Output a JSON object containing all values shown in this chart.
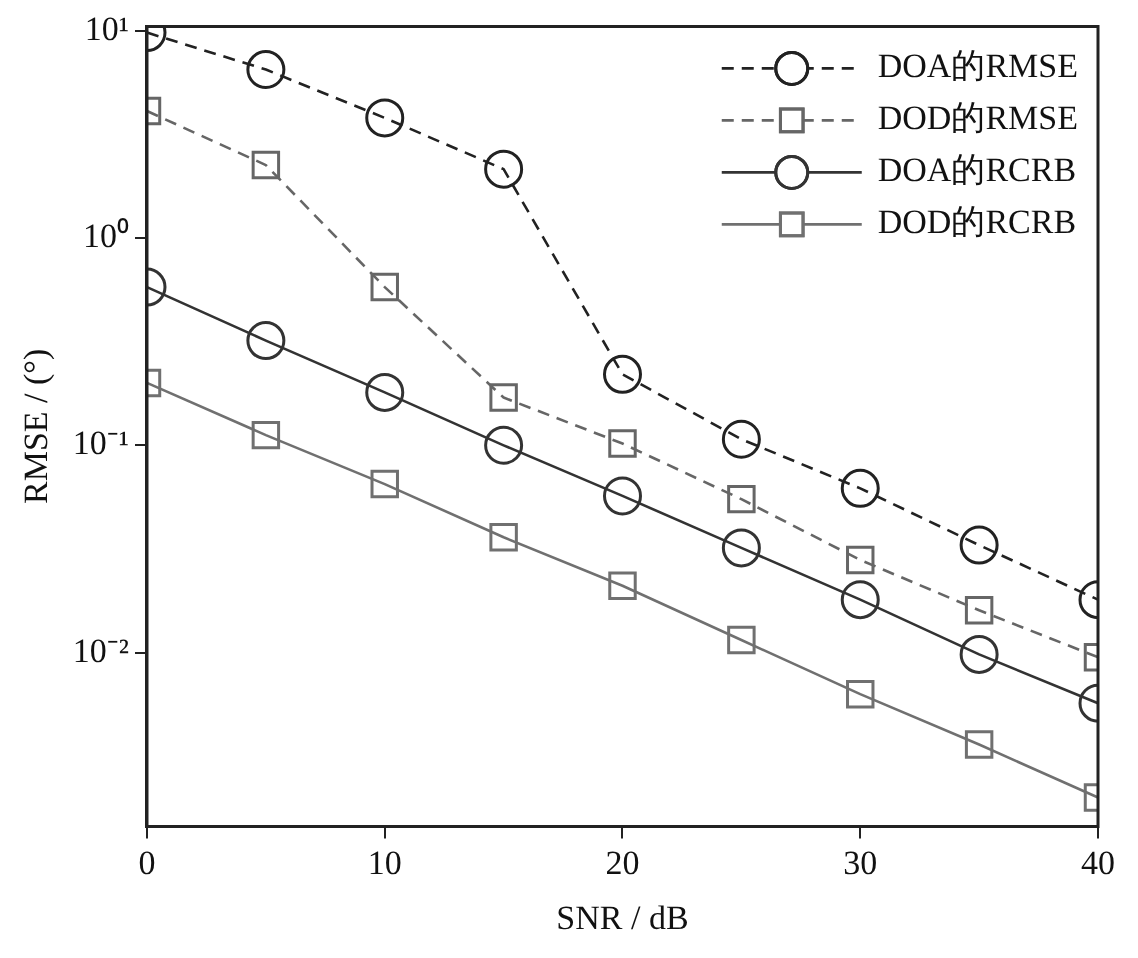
{
  "chart_data": {
    "type": "line",
    "xlabel": "SNR / dB",
    "ylabel": "RMSE / (°)",
    "x": [
      0,
      5,
      10,
      15,
      20,
      25,
      30,
      35,
      40
    ],
    "series": [
      {
        "name": "DOA的RMSE",
        "color": "#222222",
        "marker": "circle",
        "line_style": "dashed",
        "values": [
          9.8,
          6.5,
          3.8,
          2.15,
          0.22,
          0.107,
          0.062,
          0.033,
          0.018
        ]
      },
      {
        "name": "DOD的RMSE",
        "color": "#666666",
        "marker": "square",
        "line_style": "dashed",
        "values": [
          4.1,
          2.25,
          0.58,
          0.17,
          0.102,
          0.055,
          0.028,
          0.016,
          0.0095
        ]
      },
      {
        "name": "DOA的RCRB",
        "color": "#333333",
        "marker": "circle",
        "line_style": "solid",
        "values": [
          0.58,
          0.32,
          0.18,
          0.1,
          0.057,
          0.032,
          0.018,
          0.0098,
          0.0057
        ]
      },
      {
        "name": "DOD的RCRB",
        "color": "#707070",
        "marker": "square",
        "line_style": "solid",
        "values": [
          0.2,
          0.112,
          0.065,
          0.036,
          0.021,
          0.0115,
          0.0063,
          0.0036,
          0.002
        ]
      }
    ],
    "log": "y",
    "xlim": [
      0,
      40
    ],
    "xticks": [
      0,
      10,
      20,
      30,
      40
    ],
    "ylim": [
      0.00145,
      10.5
    ],
    "yticks": [
      {
        "value": 10,
        "label": "10¹"
      },
      {
        "value": 1,
        "label": "10⁰"
      },
      {
        "value": 0.1,
        "label": "10⁻¹"
      },
      {
        "value": 0.01,
        "label": "10⁻²"
      }
    ],
    "grid": false,
    "legend": "top right"
  }
}
